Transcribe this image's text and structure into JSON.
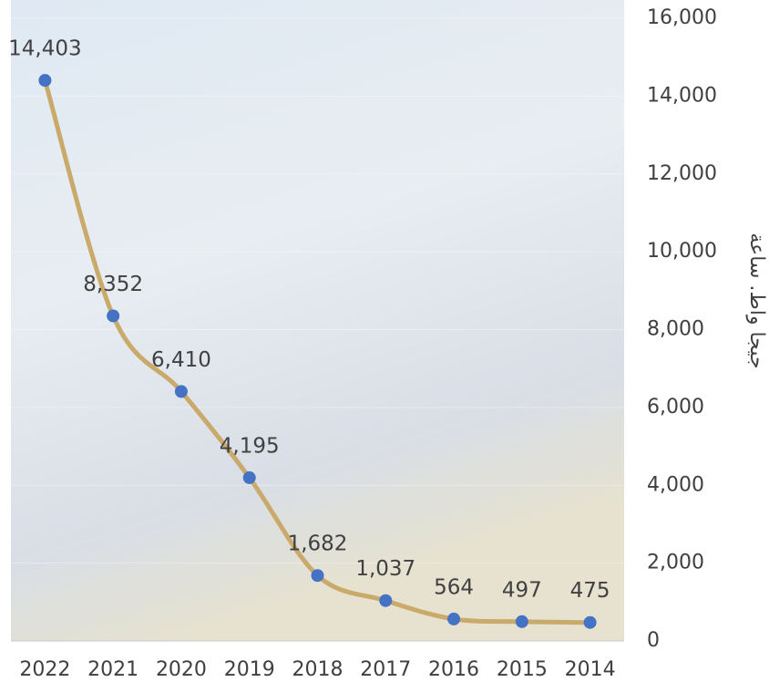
{
  "chart_data": {
    "type": "line",
    "y_label": "جيجا واط. ساعة",
    "categories": [
      "2022",
      "2021",
      "2020",
      "2019",
      "2018",
      "2017",
      "2016",
      "2015",
      "2014"
    ],
    "series": [
      {
        "name": "جيجا واط. ساعة",
        "color": "#c9aa6b",
        "marker_color": "#4472c4",
        "values": [
          14403,
          8352,
          6410,
          4195,
          1682,
          1037,
          564,
          497,
          475
        ],
        "value_labels": [
          "14,403",
          "8,352",
          "6,410",
          "4,195",
          "1,682",
          "1,037",
          "564",
          "497",
          "475"
        ]
      }
    ],
    "ylim": [
      0,
      16000
    ],
    "yticks": [
      0,
      {
        "value": 2000,
        "label": "2,000"
      },
      {
        "value": 4000,
        "label": "4,000"
      },
      {
        "value": 6000,
        "label": "6,000"
      },
      {
        "value": 8000,
        "label": "8,000"
      },
      {
        "value": 10000,
        "label": "10,000"
      },
      {
        "value": 12000,
        "label": "12,000"
      },
      {
        "value": 14000,
        "label": "14,000"
      },
      {
        "value": 16000,
        "label": "16,000"
      }
    ],
    "grid": true
  }
}
